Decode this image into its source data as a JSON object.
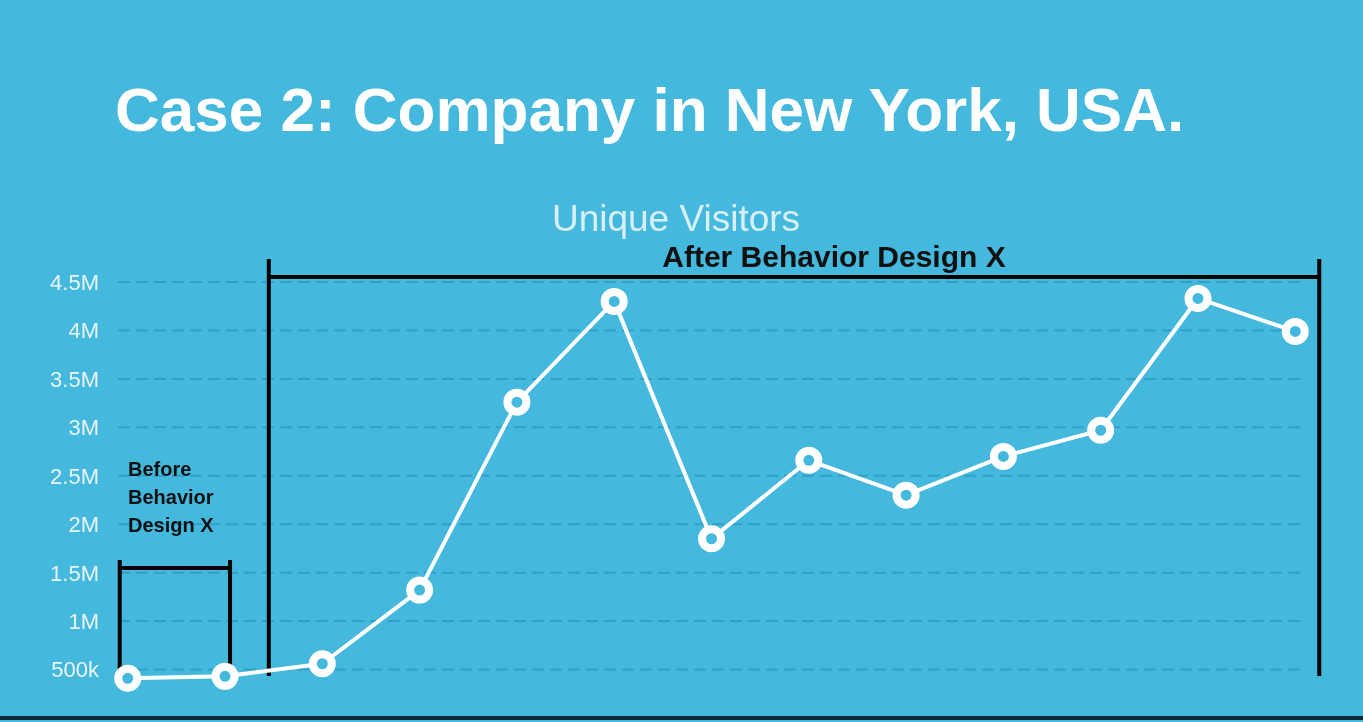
{
  "chart_data": {
    "type": "line",
    "title": "Case 2: Company in New York, USA.",
    "subtitle": "Unique Visitors",
    "annotations": [
      "Before Behavior Design X",
      "After Behavior Design X"
    ],
    "categories": [
      null,
      null,
      null,
      null,
      null,
      null,
      null,
      null,
      null,
      null,
      null,
      null,
      null
    ],
    "series": [
      {
        "color": "#ffffff",
        "values": [
          410000,
          430000,
          560000,
          1320000,
          3260000,
          4300000,
          1850000,
          2660000,
          2300000,
          2700000,
          2970000,
          4330000,
          3990000
        ]
      }
    ],
    "ylim": [
      0,
      4500000
    ],
    "yticks": [
      {
        "value": 500000,
        "label": "500k"
      },
      {
        "value": 1000000,
        "label": "1M"
      },
      {
        "value": 1500000,
        "label": "1.5M"
      },
      {
        "value": 2000000,
        "label": "2M"
      },
      {
        "value": 2500000,
        "label": "2.5M"
      },
      {
        "value": 3000000,
        "label": "3M"
      },
      {
        "value": 3500000,
        "label": "3.5M"
      },
      {
        "value": 4000000,
        "label": "4M"
      },
      {
        "value": 4500000,
        "label": "4.5M"
      }
    ],
    "grid": "y",
    "marker": "circle",
    "line_style": "solid",
    "tick_labels": "y"
  }
}
